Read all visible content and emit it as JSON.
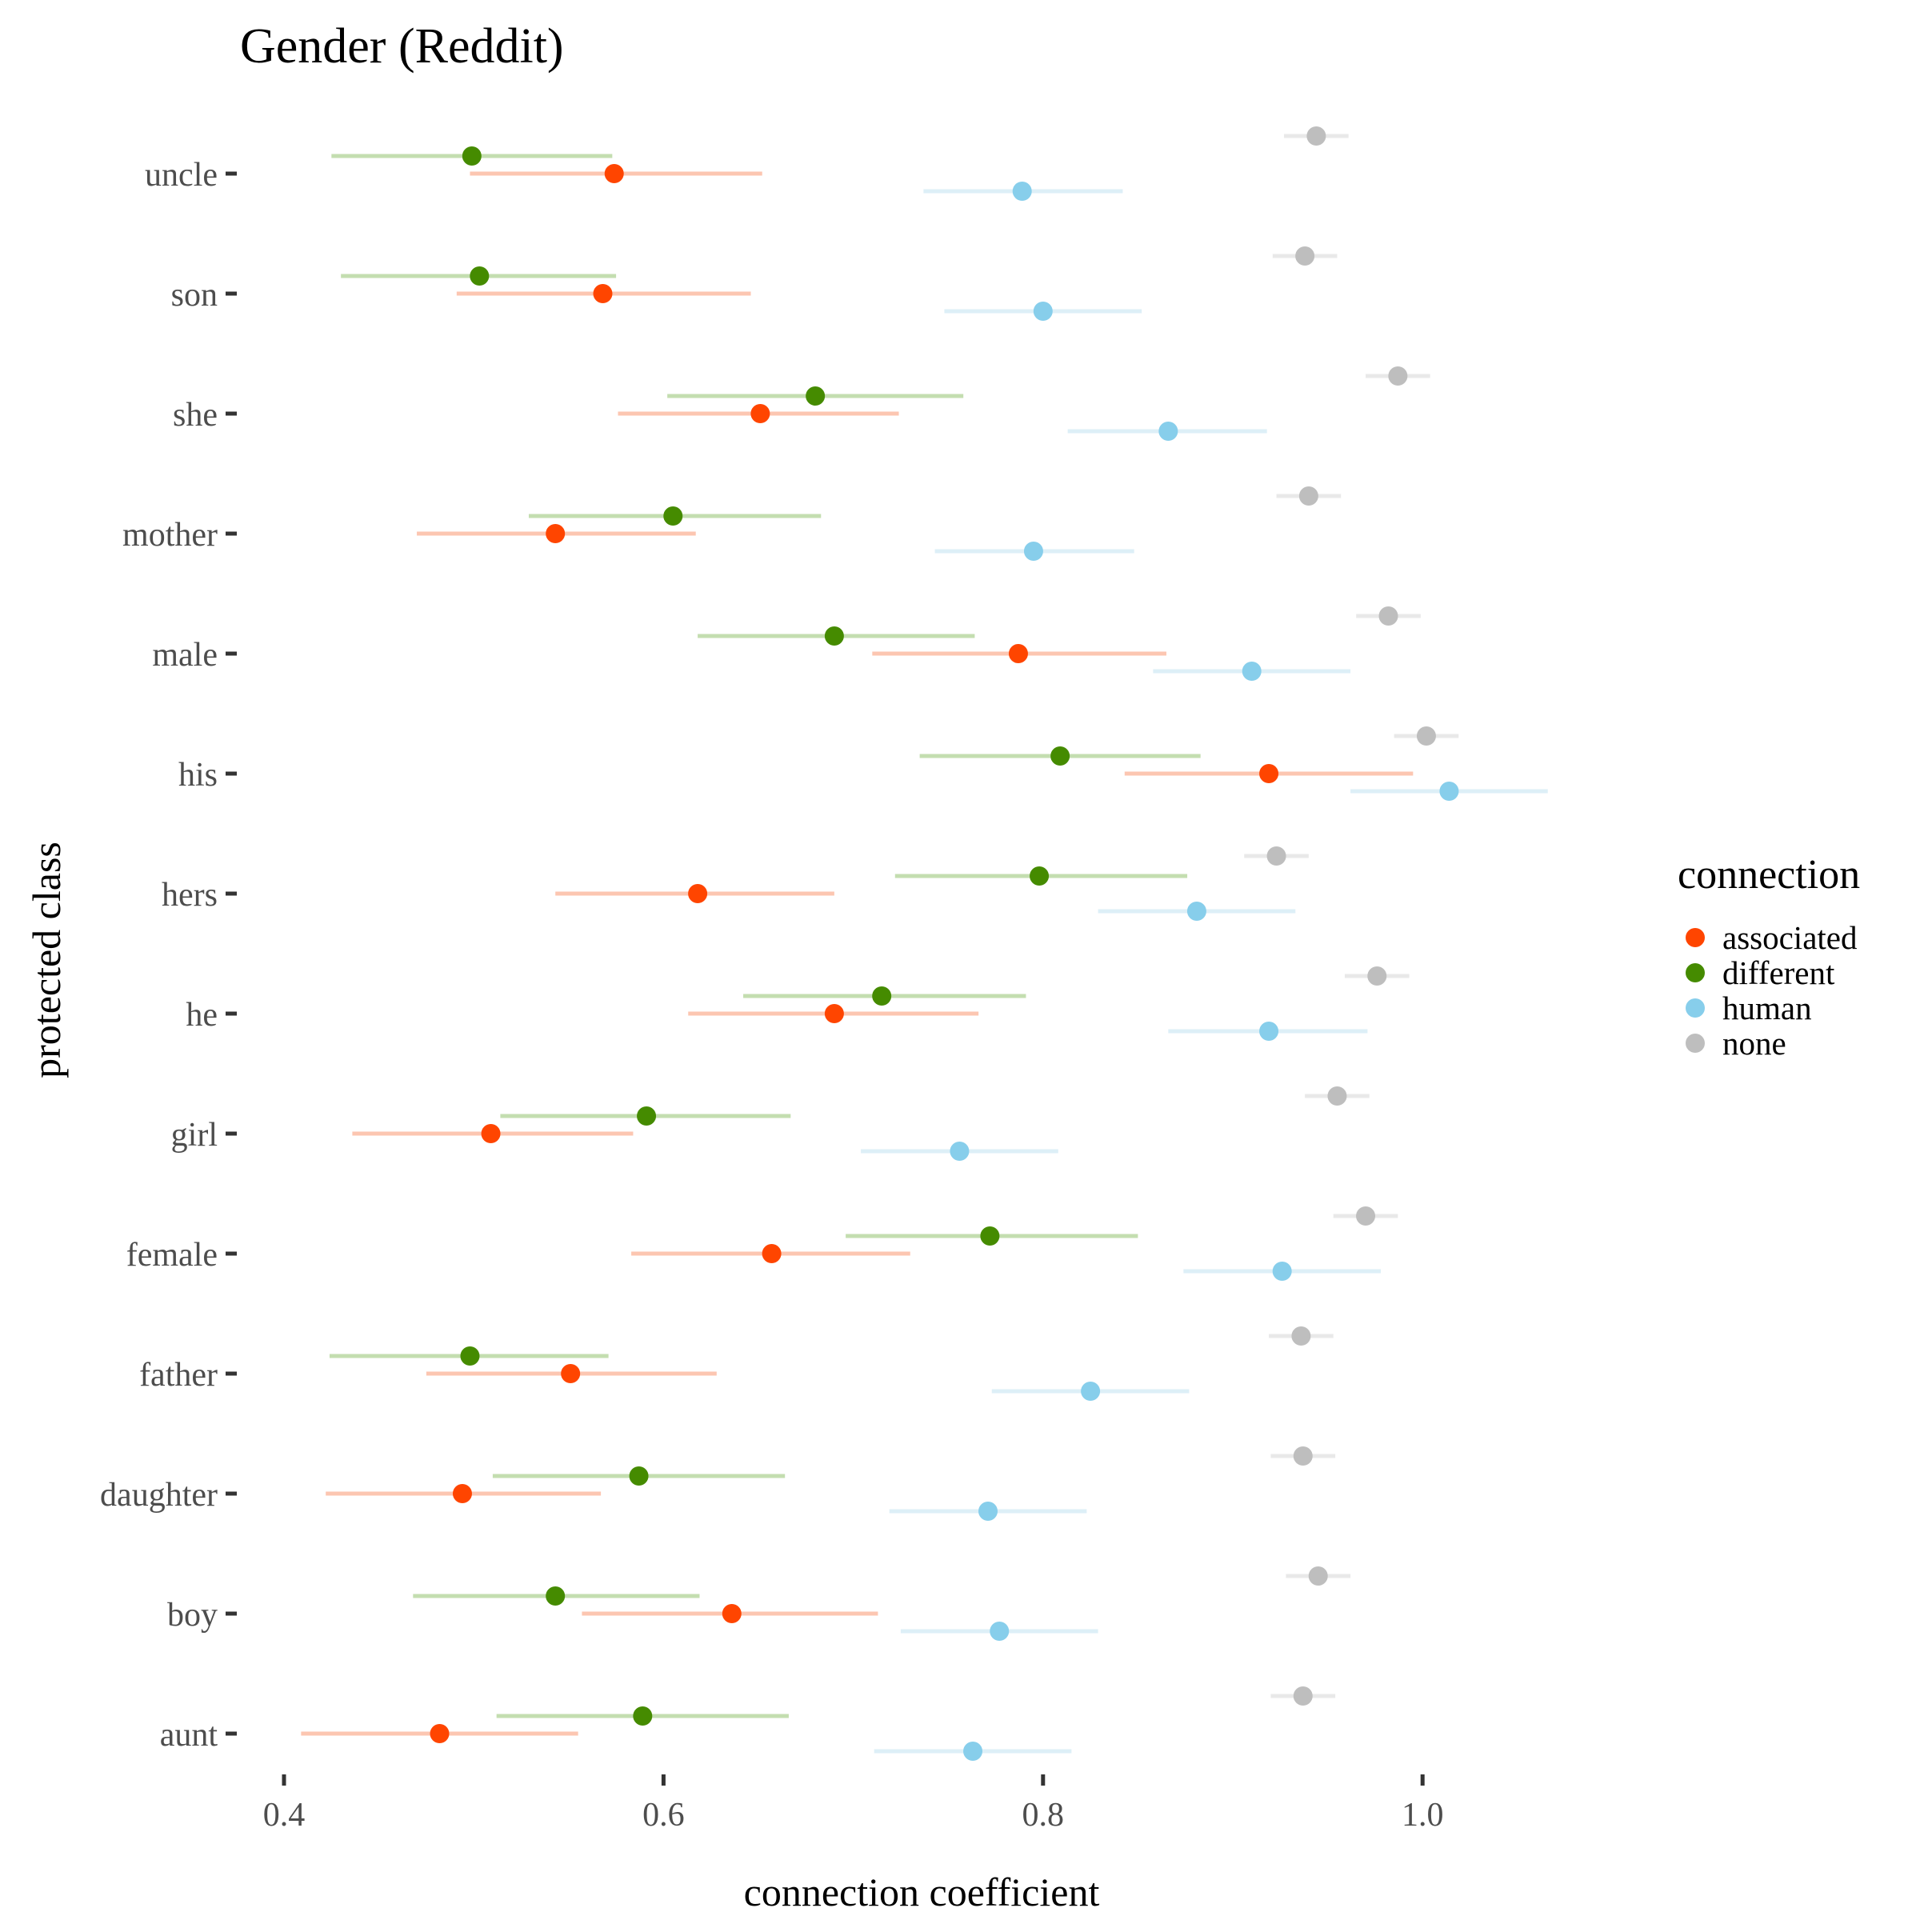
{
  "chart_data": {
    "type": "dot-interval",
    "title": "Gender (Reddit)",
    "xlabel": "connection coefficient",
    "ylabel": "protected class",
    "xlim": [
      0.39,
      1.0
    ],
    "xticks": [
      0.4,
      0.6,
      0.8,
      1.0
    ],
    "xtick_labels": [
      "0.4",
      "0.6",
      "0.8",
      "1.0"
    ],
    "grid": false,
    "legend": {
      "title": "connection",
      "position": "right",
      "entries": [
        "associated",
        "different",
        "human",
        "none"
      ]
    },
    "categories": [
      "uncle",
      "son",
      "she",
      "mother",
      "male",
      "his",
      "hers",
      "he",
      "girl",
      "female",
      "father",
      "daughter",
      "boy",
      "aunt"
    ],
    "series": [
      {
        "name": "associated",
        "color": "#ff4500",
        "band_color": "#fcc6b1",
        "values": [
          0.574,
          0.568,
          0.651,
          0.543,
          0.787,
          0.919,
          0.618,
          0.69,
          0.509,
          0.657,
          0.551,
          0.494,
          0.636,
          0.482
        ],
        "low": [
          0.498,
          0.491,
          0.576,
          0.47,
          0.71,
          0.843,
          0.543,
          0.613,
          0.436,
          0.583,
          0.475,
          0.422,
          0.557,
          0.409
        ],
        "high": [
          0.652,
          0.646,
          0.724,
          0.617,
          0.865,
          0.995,
          0.69,
          0.766,
          0.584,
          0.73,
          0.628,
          0.567,
          0.713,
          0.555
        ]
      },
      {
        "name": "different",
        "color": "#458b00",
        "band_color": "#c4deb0",
        "values": [
          0.499,
          0.503,
          0.68,
          0.605,
          0.69,
          0.809,
          0.798,
          0.715,
          0.591,
          0.772,
          0.498,
          0.587,
          0.543,
          0.589
        ],
        "low": [
          0.425,
          0.43,
          0.602,
          0.529,
          0.618,
          0.735,
          0.722,
          0.642,
          0.514,
          0.696,
          0.424,
          0.51,
          0.468,
          0.512
        ],
        "high": [
          0.573,
          0.575,
          0.758,
          0.683,
          0.764,
          0.883,
          0.876,
          0.791,
          0.667,
          0.85,
          0.571,
          0.664,
          0.619,
          0.666
        ]
      },
      {
        "name": "human",
        "color": "#87ceeb",
        "band_color": "#ddeff7",
        "values": [
          0.789,
          0.8,
          0.866,
          0.795,
          0.91,
          1.014,
          0.881,
          0.919,
          0.756,
          0.926,
          0.825,
          0.771,
          0.777,
          0.763
        ],
        "low": [
          0.737,
          0.748,
          0.813,
          0.743,
          0.858,
          0.962,
          0.829,
          0.866,
          0.704,
          0.874,
          0.773,
          0.719,
          0.725,
          0.711
        ],
        "high": [
          0.842,
          0.852,
          0.918,
          0.848,
          0.962,
          1.066,
          0.933,
          0.971,
          0.808,
          0.978,
          0.877,
          0.823,
          0.829,
          0.815
        ]
      },
      {
        "name": "none",
        "color": "#bebebe",
        "band_color": "#e9e9e9",
        "values": [
          0.944,
          0.938,
          0.987,
          0.94,
          0.982,
          1.002,
          0.923,
          0.976,
          0.955,
          0.97,
          0.936,
          0.937,
          0.945,
          0.937
        ],
        "low": [
          0.927,
          0.921,
          0.97,
          0.923,
          0.965,
          0.985,
          0.906,
          0.959,
          0.938,
          0.953,
          0.919,
          0.92,
          0.928,
          0.92
        ],
        "high": [
          0.961,
          0.955,
          1.004,
          0.957,
          0.999,
          1.019,
          0.94,
          0.993,
          0.972,
          0.987,
          0.953,
          0.954,
          0.962,
          0.954
        ]
      }
    ]
  }
}
